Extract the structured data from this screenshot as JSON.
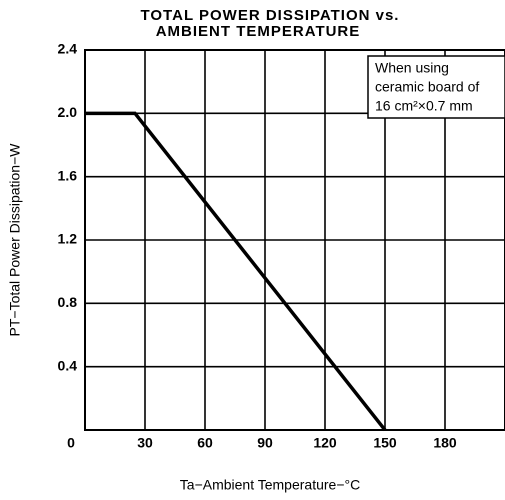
{
  "chart_data": {
    "type": "line",
    "title": [
      "TOTAL POWER DISSIPATION vs.",
      "AMBIENT TEMPERATURE"
    ],
    "xlabel": "Ta−Ambient Temperature−°C",
    "ylabel": "PT−Total Power Dissipation−W",
    "annotation": [
      "When using",
      "ceramic board of",
      "16 cm²×0.7 mm"
    ],
    "series": [
      {
        "x": [
          0,
          25,
          150
        ],
        "values": [
          2.0,
          2.0,
          0
        ],
        "color": "#000000"
      }
    ],
    "xlim": [
      0,
      210
    ],
    "ylim": [
      0,
      2.4
    ],
    "xticks": [
      0,
      30,
      60,
      90,
      120,
      150,
      180
    ],
    "yticks": [
      0.4,
      0.8,
      1.2,
      1.6,
      {
        "value": 2,
        "label": "2.0"
      },
      2.4
    ],
    "grid": true
  }
}
